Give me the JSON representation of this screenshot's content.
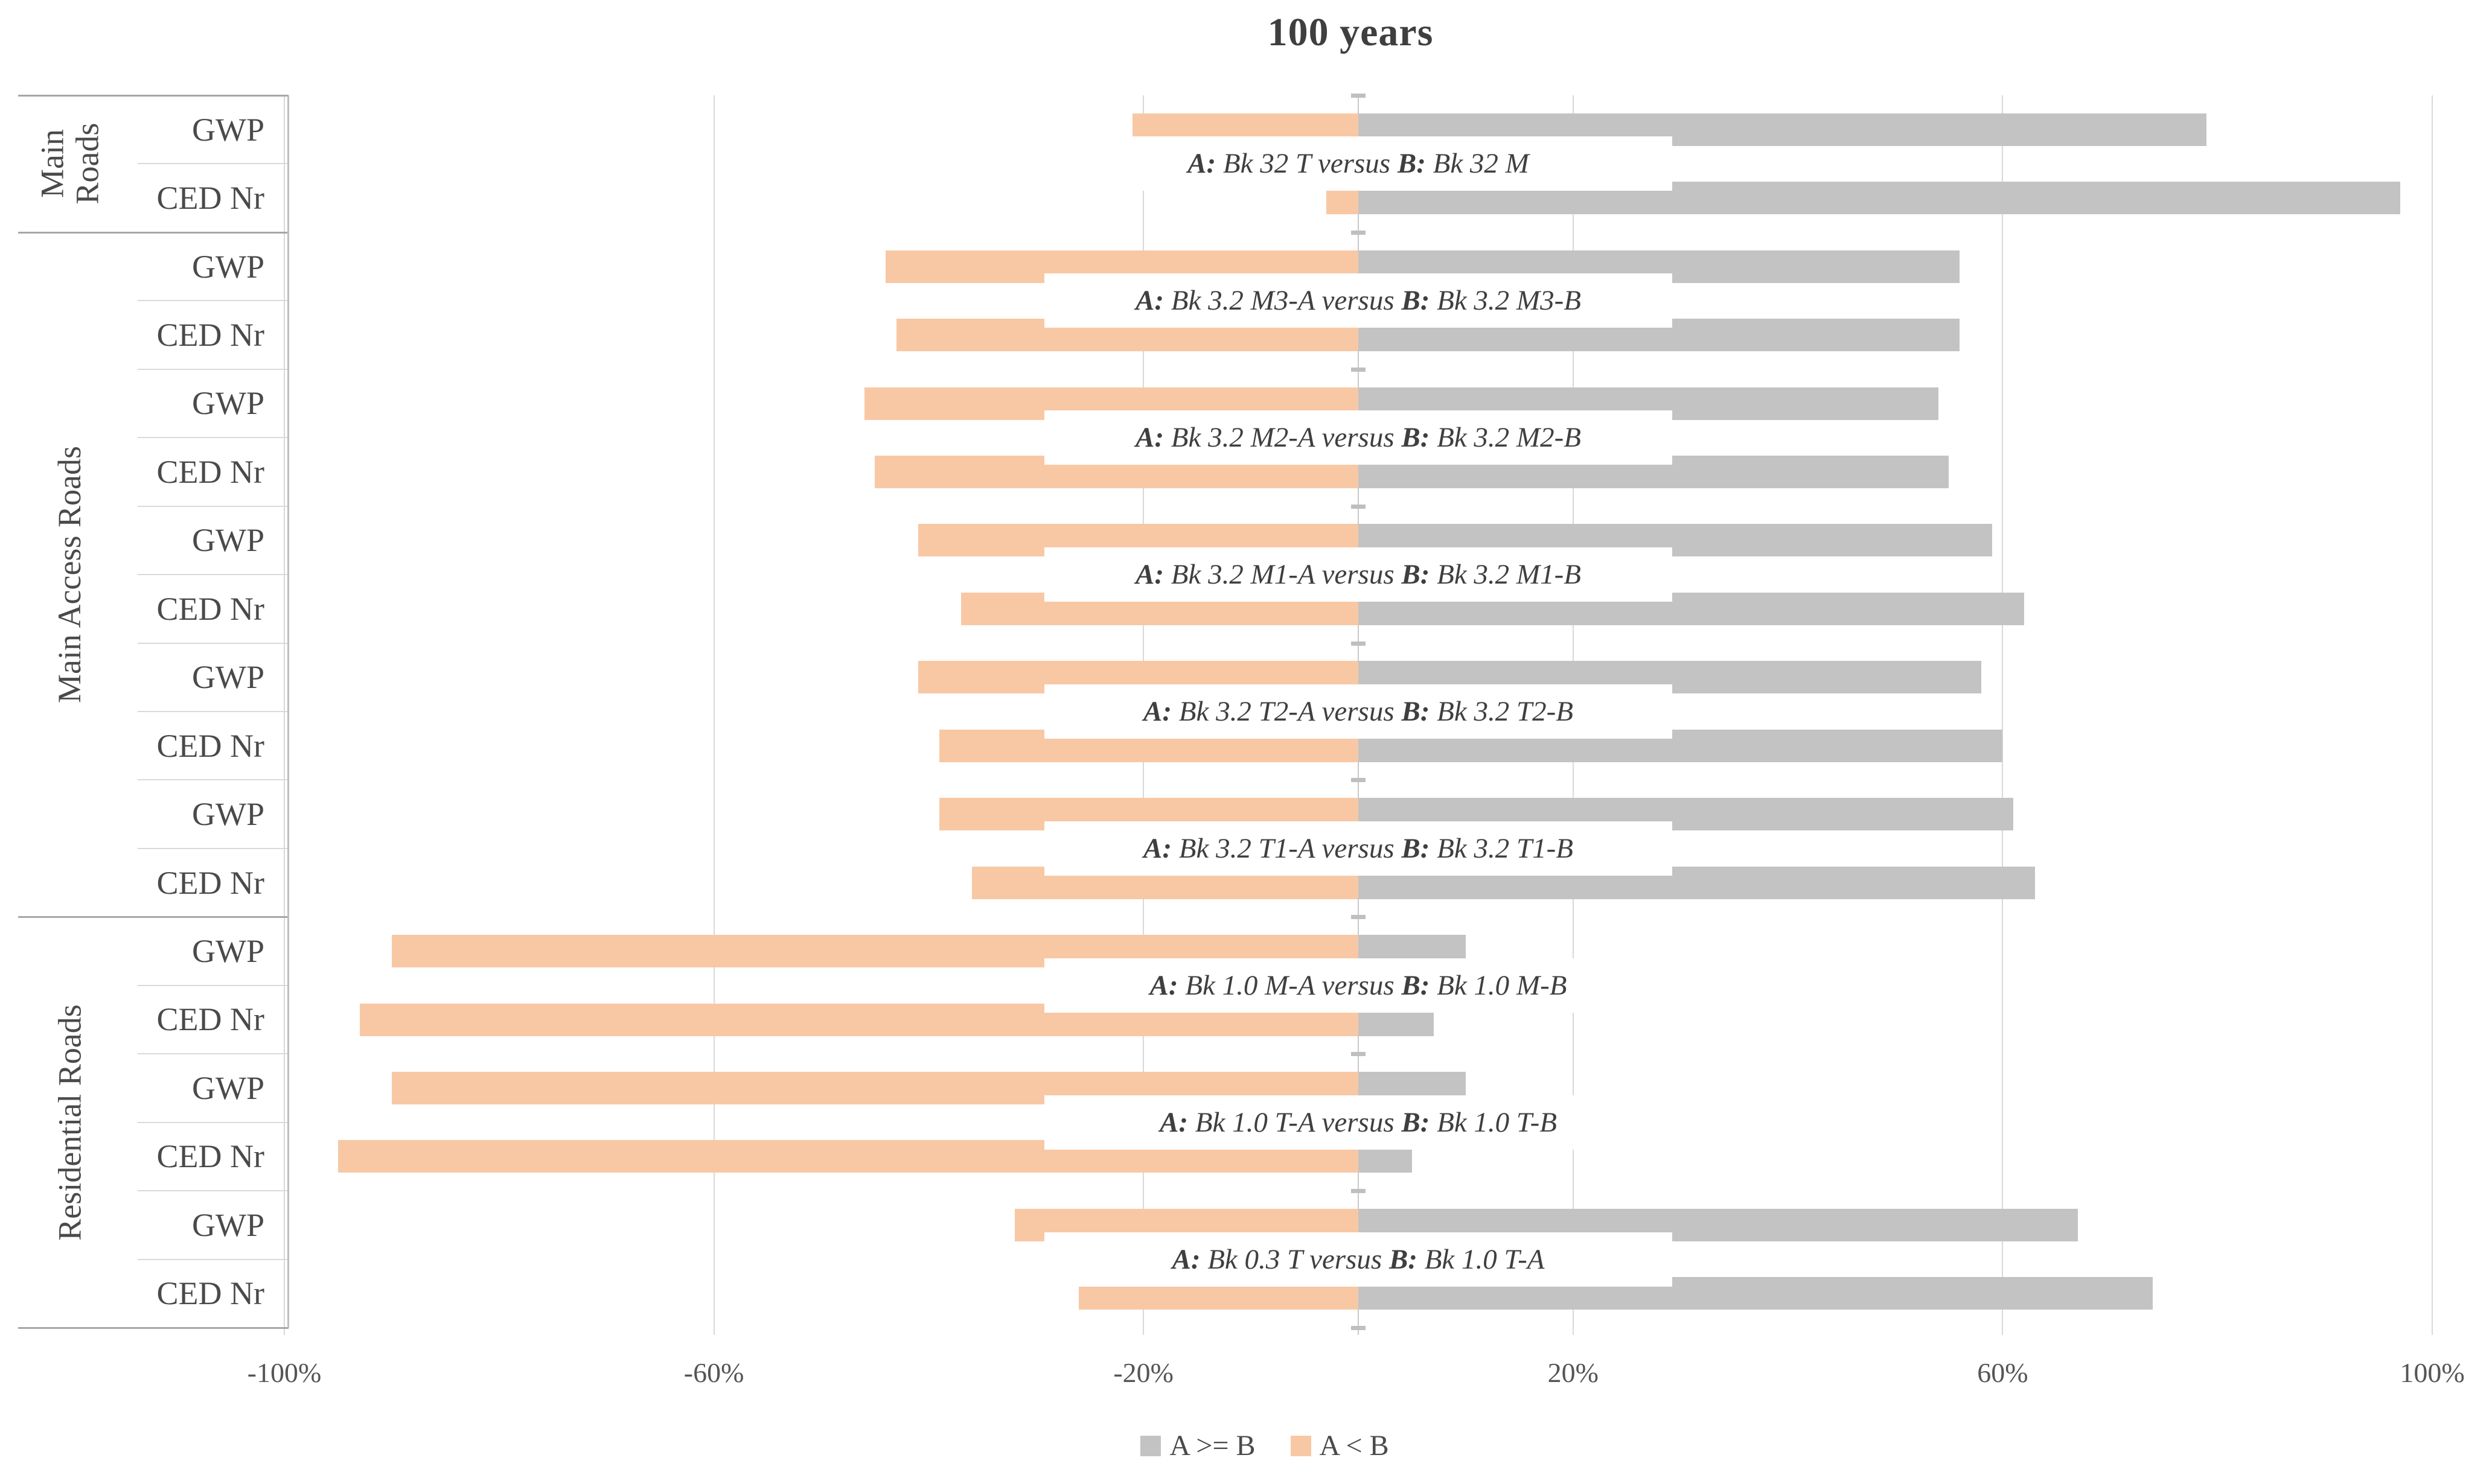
{
  "title": "100 years",
  "legend": [
    {
      "label": "A >= B",
      "color": "#c3c3c3"
    },
    {
      "label": "A < B",
      "color": "#f8c8a4"
    }
  ],
  "annotation_format": {
    "a_prefix": "A:",
    "versus": "versus",
    "b_prefix": "B:"
  },
  "x_axis": {
    "ticks": [
      {
        "value": -100,
        "label": "-100%"
      },
      {
        "value": -60,
        "label": "-60%"
      },
      {
        "value": -20,
        "label": "-20%"
      },
      {
        "value": 20,
        "label": "20%"
      },
      {
        "value": 60,
        "label": "60%"
      },
      {
        "value": 100,
        "label": "100%"
      }
    ]
  },
  "colors": {
    "a_ge_b_bar": "#c3c3c3",
    "a_lt_b_bar": "#f8c8a4",
    "gridline": "#d9d9d9",
    "zero_axis": "#c9c9c9",
    "group_border": "#a6a6a6",
    "row_border": "#dadada",
    "title_text": "#3f3f3f",
    "label_text": "#4a4a4a"
  },
  "chart_data": {
    "type": "bar",
    "orientation": "horizontal",
    "title": "100 years",
    "xlabel": "",
    "ylabel": "",
    "units": "%",
    "xlim": [
      -100,
      100
    ],
    "x_ticks_pct": [
      -100,
      -60,
      -20,
      20,
      60,
      100
    ],
    "grid": true,
    "legend_position": "bottom",
    "series_names": [
      "A >= B",
      "A < B"
    ],
    "groups": [
      {
        "label": "Main Roads",
        "pair_count": 1
      },
      {
        "label": "Main Access Roads",
        "pair_count": 5
      },
      {
        "label": "Residential Roads",
        "pair_count": 3
      }
    ],
    "pairs": [
      {
        "group": "Main Roads",
        "a": "Bk 32 T",
        "b": "Bk 32 M",
        "rows": [
          {
            "metric": "GWP",
            "a_lt_b": -21,
            "a_ge_b": 79
          },
          {
            "metric": "CED Nr",
            "a_lt_b": -3,
            "a_ge_b": 97
          }
        ]
      },
      {
        "group": "Main Access Roads",
        "a": "Bk 3.2 M3-A",
        "b": "Bk 3.2 M3-B",
        "rows": [
          {
            "metric": "GWP",
            "a_lt_b": -44,
            "a_ge_b": 56
          },
          {
            "metric": "CED Nr",
            "a_lt_b": -43,
            "a_ge_b": 56
          }
        ]
      },
      {
        "group": "Main Access Roads",
        "a": "Bk 3.2 M2-A",
        "b": "Bk 3.2 M2-B",
        "rows": [
          {
            "metric": "GWP",
            "a_lt_b": -46,
            "a_ge_b": 54
          },
          {
            "metric": "CED Nr",
            "a_lt_b": -45,
            "a_ge_b": 55
          }
        ]
      },
      {
        "group": "Main Access Roads",
        "a": "Bk 3.2 M1-A",
        "b": "Bk 3.2 M1-B",
        "rows": [
          {
            "metric": "GWP",
            "a_lt_b": -41,
            "a_ge_b": 59
          },
          {
            "metric": "CED Nr",
            "a_lt_b": -37,
            "a_ge_b": 62
          }
        ]
      },
      {
        "group": "Main Access Roads",
        "a": "Bk 3.2 T2-A",
        "b": "Bk 3.2 T2-B",
        "rows": [
          {
            "metric": "GWP",
            "a_lt_b": -41,
            "a_ge_b": 58
          },
          {
            "metric": "CED Nr",
            "a_lt_b": -39,
            "a_ge_b": 60
          }
        ]
      },
      {
        "group": "Main Access Roads",
        "a": "Bk 3.2 T1-A",
        "b": "Bk 3.2 T1-B",
        "rows": [
          {
            "metric": "GWP",
            "a_lt_b": -39,
            "a_ge_b": 61
          },
          {
            "metric": "CED Nr",
            "a_lt_b": -36,
            "a_ge_b": 63
          }
        ]
      },
      {
        "group": "Residential Roads",
        "a": "Bk 1.0 M-A",
        "b": "Bk 1.0 M-B",
        "rows": [
          {
            "metric": "GWP",
            "a_lt_b": -90,
            "a_ge_b": 10
          },
          {
            "metric": "CED Nr",
            "a_lt_b": -93,
            "a_ge_b": 7
          }
        ]
      },
      {
        "group": "Residential Roads",
        "a": "Bk 1.0 T-A",
        "b": "Bk 1.0 T-B",
        "rows": [
          {
            "metric": "GWP",
            "a_lt_b": -90,
            "a_ge_b": 10
          },
          {
            "metric": "CED Nr",
            "a_lt_b": -95,
            "a_ge_b": 5
          }
        ]
      },
      {
        "group": "Residential Roads",
        "a": "Bk 0.3 T",
        "b": "Bk 1.0 T-A",
        "rows": [
          {
            "metric": "GWP",
            "a_lt_b": -32,
            "a_ge_b": 67
          },
          {
            "metric": "CED Nr",
            "a_lt_b": -26,
            "a_ge_b": 74
          }
        ]
      }
    ]
  }
}
